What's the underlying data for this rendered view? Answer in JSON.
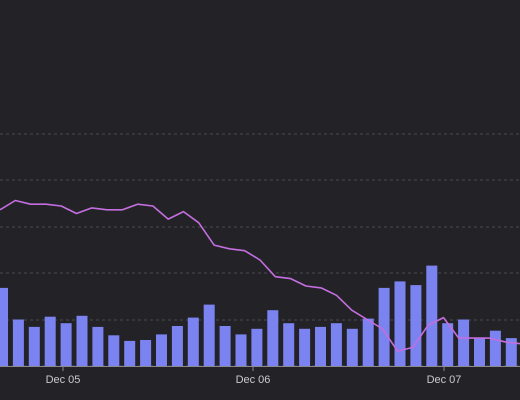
{
  "chart_data": {
    "type": "bar+line",
    "title": "",
    "xlabel": "",
    "ylabel": "",
    "grid": "horizontal dashed",
    "x_tick_labels": [
      "Dec 05",
      "Dec 06",
      "Dec 07"
    ],
    "colors": {
      "background": "#232327",
      "bars": "#7b83f0",
      "line": "#c46ee0",
      "grid": "#4a4a50",
      "axis": "#8a8a92",
      "tick_text": "#c9c9cf"
    },
    "bar_ylim": [
      0,
      200
    ],
    "line_ylim": [
      0,
      100
    ],
    "series": [
      {
        "type": "bar",
        "values": [
          84,
          50,
          42,
          53,
          46,
          54,
          42,
          33,
          27,
          28,
          34,
          43,
          52,
          66,
          43,
          34,
          40,
          60,
          46,
          40,
          42,
          46,
          40,
          51,
          84,
          91,
          87,
          108,
          46,
          50,
          30,
          38,
          30,
          28
        ]
      },
      {
        "type": "line",
        "values": [
          84,
          89,
          87,
          87,
          86,
          82,
          85,
          84,
          84,
          87,
          86,
          79,
          83,
          77,
          65,
          63,
          62,
          57,
          48,
          47,
          43,
          42,
          38,
          30,
          25,
          20,
          8,
          10,
          22,
          26,
          15,
          15,
          15,
          13,
          12
        ]
      }
    ]
  }
}
